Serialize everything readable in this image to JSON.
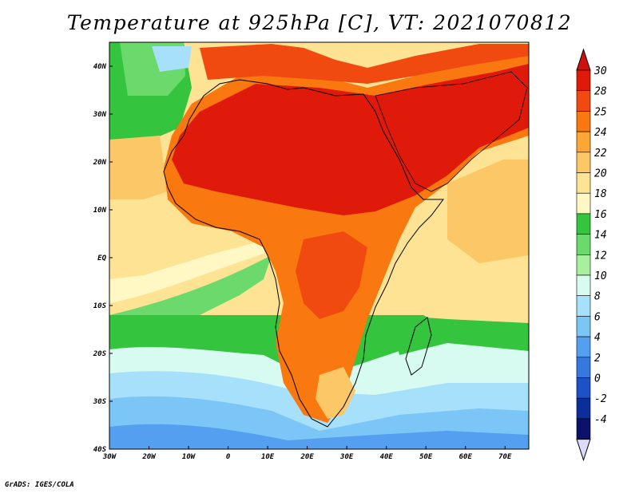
{
  "title": "Temperature at 925hPa [C], VT: 2021070812",
  "credit": "GrADS: IGES/COLA",
  "map": {
    "lon_range": [
      -30,
      76
    ],
    "lat_range": [
      -40,
      45
    ],
    "lon_ticks": [
      {
        "v": -30,
        "label": "30W"
      },
      {
        "v": -20,
        "label": "20W"
      },
      {
        "v": -10,
        "label": "10W"
      },
      {
        "v": 0,
        "label": "0"
      },
      {
        "v": 10,
        "label": "10E"
      },
      {
        "v": 20,
        "label": "20E"
      },
      {
        "v": 30,
        "label": "30E"
      },
      {
        "v": 40,
        "label": "40E"
      },
      {
        "v": 50,
        "label": "50E"
      },
      {
        "v": 60,
        "label": "60E"
      },
      {
        "v": 70,
        "label": "70E"
      }
    ],
    "lat_ticks": [
      {
        "v": 40,
        "label": "40N"
      },
      {
        "v": 30,
        "label": "30N"
      },
      {
        "v": 20,
        "label": "20N"
      },
      {
        "v": 10,
        "label": "10N"
      },
      {
        "v": 0,
        "label": "EQ"
      },
      {
        "v": -10,
        "label": "10S"
      },
      {
        "v": -20,
        "label": "20S"
      },
      {
        "v": -30,
        "label": "30S"
      },
      {
        "v": -40,
        "label": "40S"
      }
    ]
  },
  "colorbar": {
    "levels": [
      "30",
      "28",
      "25",
      "24",
      "22",
      "20",
      "18",
      "16",
      "14",
      "12",
      "10",
      "8",
      "6",
      "4",
      "2",
      "0",
      "-2",
      "-4"
    ],
    "colors": [
      "#e01a0a",
      "#f04a10",
      "#f9780f",
      "#fba635",
      "#fcc766",
      "#fde393",
      "#fff7c4",
      "#34c43e",
      "#6bd96b",
      "#a8ef9f",
      "#d7fbf0",
      "#a6e0fb",
      "#7bc6f7",
      "#559ff0",
      "#3578e0",
      "#1c52c6",
      "#0c2e9a",
      "#0a126c"
    ],
    "top_color": "#d0100a",
    "bottom_color": "#dcdcfa"
  }
}
